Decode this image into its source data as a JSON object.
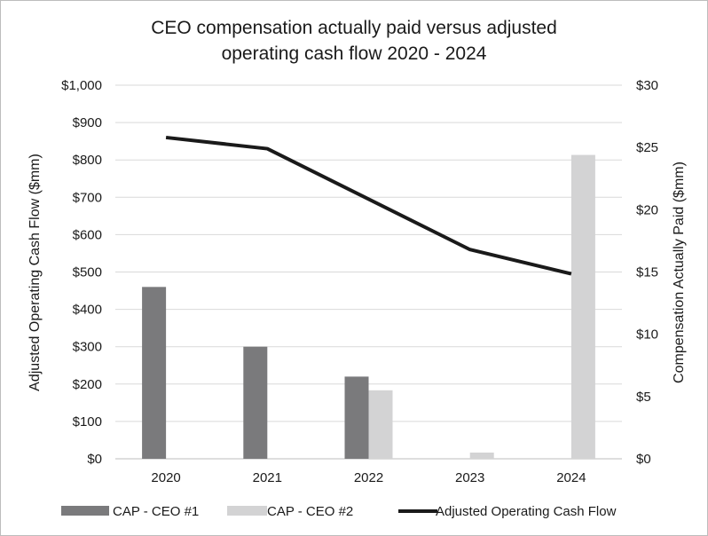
{
  "chart_data": {
    "type": "bar",
    "title_lines": [
      "CEO compensation actually paid versus adjusted",
      "operating cash flow 2020 - 2024"
    ],
    "categories": [
      "2020",
      "2021",
      "2022",
      "2023",
      "2024"
    ],
    "series": [
      {
        "name": "CAP - CEO #1",
        "type": "bar",
        "axis": "right",
        "color": "#7a7a7c",
        "values": [
          13.8,
          9.0,
          6.6,
          null,
          null
        ]
      },
      {
        "name": "CAP - CEO #2",
        "type": "bar",
        "axis": "right",
        "color": "#d3d3d4",
        "values": [
          null,
          null,
          5.5,
          0.5,
          24.4
        ]
      },
      {
        "name": "Adjusted Operating Cash Flow",
        "type": "line",
        "axis": "left",
        "color": "#1a1a1a",
        "values": [
          860,
          830,
          null,
          560,
          495
        ]
      }
    ],
    "left_axis": {
      "label": "Adjusted Operating Cash Flow ($mm)",
      "range": [
        0,
        1000
      ],
      "ticks": [
        0,
        100,
        200,
        300,
        400,
        500,
        600,
        700,
        800,
        900,
        1000
      ],
      "tick_labels": [
        "$0",
        "$100",
        "$200",
        "$300",
        "$400",
        "$500",
        "$600",
        "$700",
        "$800",
        "$900",
        "$1,000"
      ]
    },
    "right_axis": {
      "label": "Compensation Actually Paid ($mm)",
      "range": [
        0,
        30
      ],
      "ticks": [
        0,
        5,
        10,
        15,
        20,
        25,
        30
      ],
      "tick_labels": [
        "$0",
        "$5",
        "$10",
        "$15",
        "$20",
        "$25",
        "$30"
      ]
    },
    "grid": true,
    "legend_position": "bottom"
  }
}
